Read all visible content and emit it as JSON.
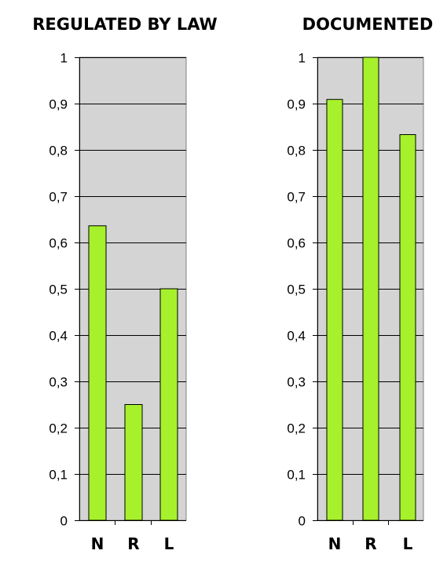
{
  "colors": {
    "bar_fill": "#a6f12b",
    "plot_background": "#d4d4d4"
  },
  "chart_data": [
    {
      "type": "bar",
      "title": "REGULATED BY LAW",
      "categories": [
        "N",
        "R",
        "L"
      ],
      "values": [
        0.636,
        0.25,
        0.5
      ],
      "ylim": [
        0,
        1
      ],
      "yticks": [
        0,
        0.1,
        0.2,
        0.3,
        0.4,
        0.5,
        0.6,
        0.7,
        0.8,
        0.9,
        1
      ],
      "ytick_labels": [
        "0",
        "0,1",
        "0,2",
        "0,3",
        "0,4",
        "0,5",
        "0,6",
        "0,7",
        "0,8",
        "0,9",
        "1"
      ],
      "xlabel": "",
      "ylabel": "",
      "grid": true,
      "legend": "none"
    },
    {
      "type": "bar",
      "title": "DOCUMENTED",
      "categories": [
        "N",
        "R",
        "L"
      ],
      "values": [
        0.909,
        1.0,
        0.833
      ],
      "ylim": [
        0,
        1
      ],
      "yticks": [
        0,
        0.1,
        0.2,
        0.3,
        0.4,
        0.5,
        0.6,
        0.7,
        0.8,
        0.9,
        1
      ],
      "ytick_labels": [
        "0",
        "0,1",
        "0,2",
        "0,3",
        "0,4",
        "0,5",
        "0,6",
        "0,7",
        "0,8",
        "0,9",
        "1"
      ],
      "xlabel": "",
      "ylabel": "",
      "grid": true,
      "legend": "none"
    }
  ]
}
